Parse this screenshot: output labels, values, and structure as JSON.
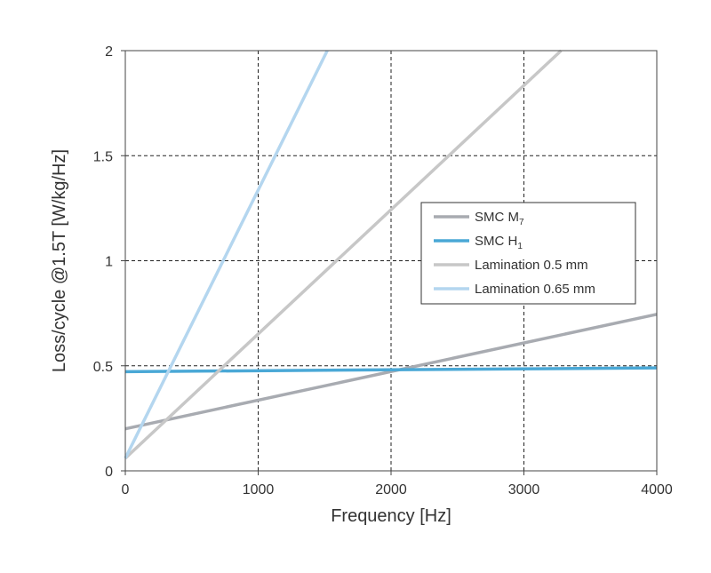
{
  "chart_data": {
    "type": "line",
    "xlabel": "Frequency [Hz]",
    "ylabel": "Loss/cycle  @1.5T [W/kg/Hz]",
    "xlim": [
      0,
      4000
    ],
    "ylim": [
      0,
      2
    ],
    "xticks": [
      0,
      1000,
      2000,
      3000,
      4000
    ],
    "yticks": [
      0,
      0.5,
      1,
      1.5,
      2
    ],
    "xtick_labels": [
      "0",
      "1000",
      "2000",
      "3000",
      "4000"
    ],
    "ytick_labels": [
      "0",
      "0.5",
      "1",
      "1.5",
      "2"
    ],
    "grid": true,
    "legend_position": "center-right",
    "series": [
      {
        "name": "SMC M",
        "name_sub": "7",
        "color": "#a8abb1",
        "x": [
          0,
          4000
        ],
        "y": [
          0.2,
          0.745
        ]
      },
      {
        "name": "SMC H",
        "name_sub": "1",
        "color": "#4aa8d6",
        "x": [
          0,
          4000
        ],
        "y": [
          0.472,
          0.49
        ]
      },
      {
        "name": "Lamination 0.5 mm",
        "name_sub": "",
        "color": "#c7c7c7",
        "x": [
          0,
          3280
        ],
        "y": [
          0.06,
          2.0
        ]
      },
      {
        "name": "Lamination 0.65 mm",
        "name_sub": "",
        "color": "#b4d6ef",
        "x": [
          0,
          1520
        ],
        "y": [
          0.06,
          2.0
        ]
      }
    ]
  }
}
